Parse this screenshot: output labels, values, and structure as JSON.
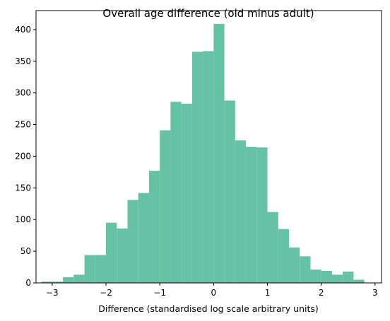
{
  "chart_data": {
    "type": "bar",
    "title": "Overall age difference (old minus adult)",
    "xlabel": "Difference (standardised log scale arbitrary units)",
    "ylabel": "",
    "bar_color": "#66c2a5",
    "xlim": [
      -3.3,
      3.12
    ],
    "ylim": [
      0,
      430
    ],
    "xticks": [
      -3,
      -2,
      -1,
      0,
      1,
      2,
      3
    ],
    "yticks": [
      0,
      50,
      100,
      150,
      200,
      250,
      300,
      350,
      400
    ],
    "bin_edges": [
      -3.2,
      -3.0,
      -2.8,
      -2.6,
      -2.4,
      -2.2,
      -2.0,
      -1.8,
      -1.6,
      -1.4,
      -1.2,
      -1.0,
      -0.8,
      -0.6,
      -0.4,
      -0.2,
      0.0,
      0.2,
      0.4,
      0.6,
      0.8,
      1.0,
      1.2,
      1.4,
      1.6,
      1.8,
      2.0,
      2.2,
      2.4,
      2.6,
      2.8,
      3.0
    ],
    "counts": [
      2,
      2,
      9,
      13,
      44,
      44,
      95,
      86,
      131,
      142,
      177,
      241,
      286,
      283,
      365,
      366,
      409,
      288,
      225,
      215,
      214,
      112,
      85,
      56,
      42,
      21,
      19,
      13,
      18,
      5,
      0
    ],
    "grid": false
  }
}
